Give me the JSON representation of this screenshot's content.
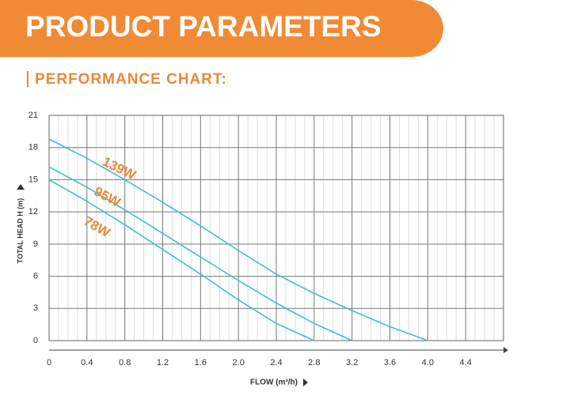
{
  "header": {
    "title": "PRODUCT PARAMETERS",
    "subtitle": "PERFORMANCE CHART:"
  },
  "chart_data": {
    "type": "line",
    "x_label": "FLOW (m³/h)",
    "y_label": "TOTAL HEAD H (m)",
    "x": [
      0,
      0.4,
      0.8,
      1.2,
      1.6,
      2.0,
      2.4,
      2.8,
      3.2,
      3.6,
      4.0
    ],
    "series": [
      {
        "name": "139W",
        "color": "#3dbfd2",
        "values": [
          18.8,
          17.0,
          15.0,
          12.9,
          10.7,
          8.4,
          6.2,
          4.4,
          2.8,
          1.3,
          0
        ]
      },
      {
        "name": "95W",
        "color": "#3dbfd2",
        "values": [
          16.2,
          14.3,
          12.2,
          10.0,
          7.8,
          5.6,
          3.5,
          1.6,
          0,
          null,
          null
        ]
      },
      {
        "name": "78W",
        "color": "#3dbfd2",
        "values": [
          15.0,
          13.0,
          10.8,
          8.5,
          6.2,
          3.8,
          1.6,
          0,
          null,
          null,
          null
        ]
      }
    ],
    "label_color": "#e8893a",
    "xlim": [
      0,
      4.8
    ],
    "xticks": [
      0,
      0.4,
      0.8,
      1.2,
      1.6,
      {
        "value": 2,
        "label": "2.0"
      },
      2.4,
      2.8,
      3.2,
      3.6,
      {
        "value": 4,
        "label": "4.0"
      },
      4.4
    ],
    "ylim": [
      0,
      21
    ],
    "yticks": [
      0,
      3,
      6,
      9,
      12,
      15,
      18,
      21
    ],
    "grid": true
  }
}
